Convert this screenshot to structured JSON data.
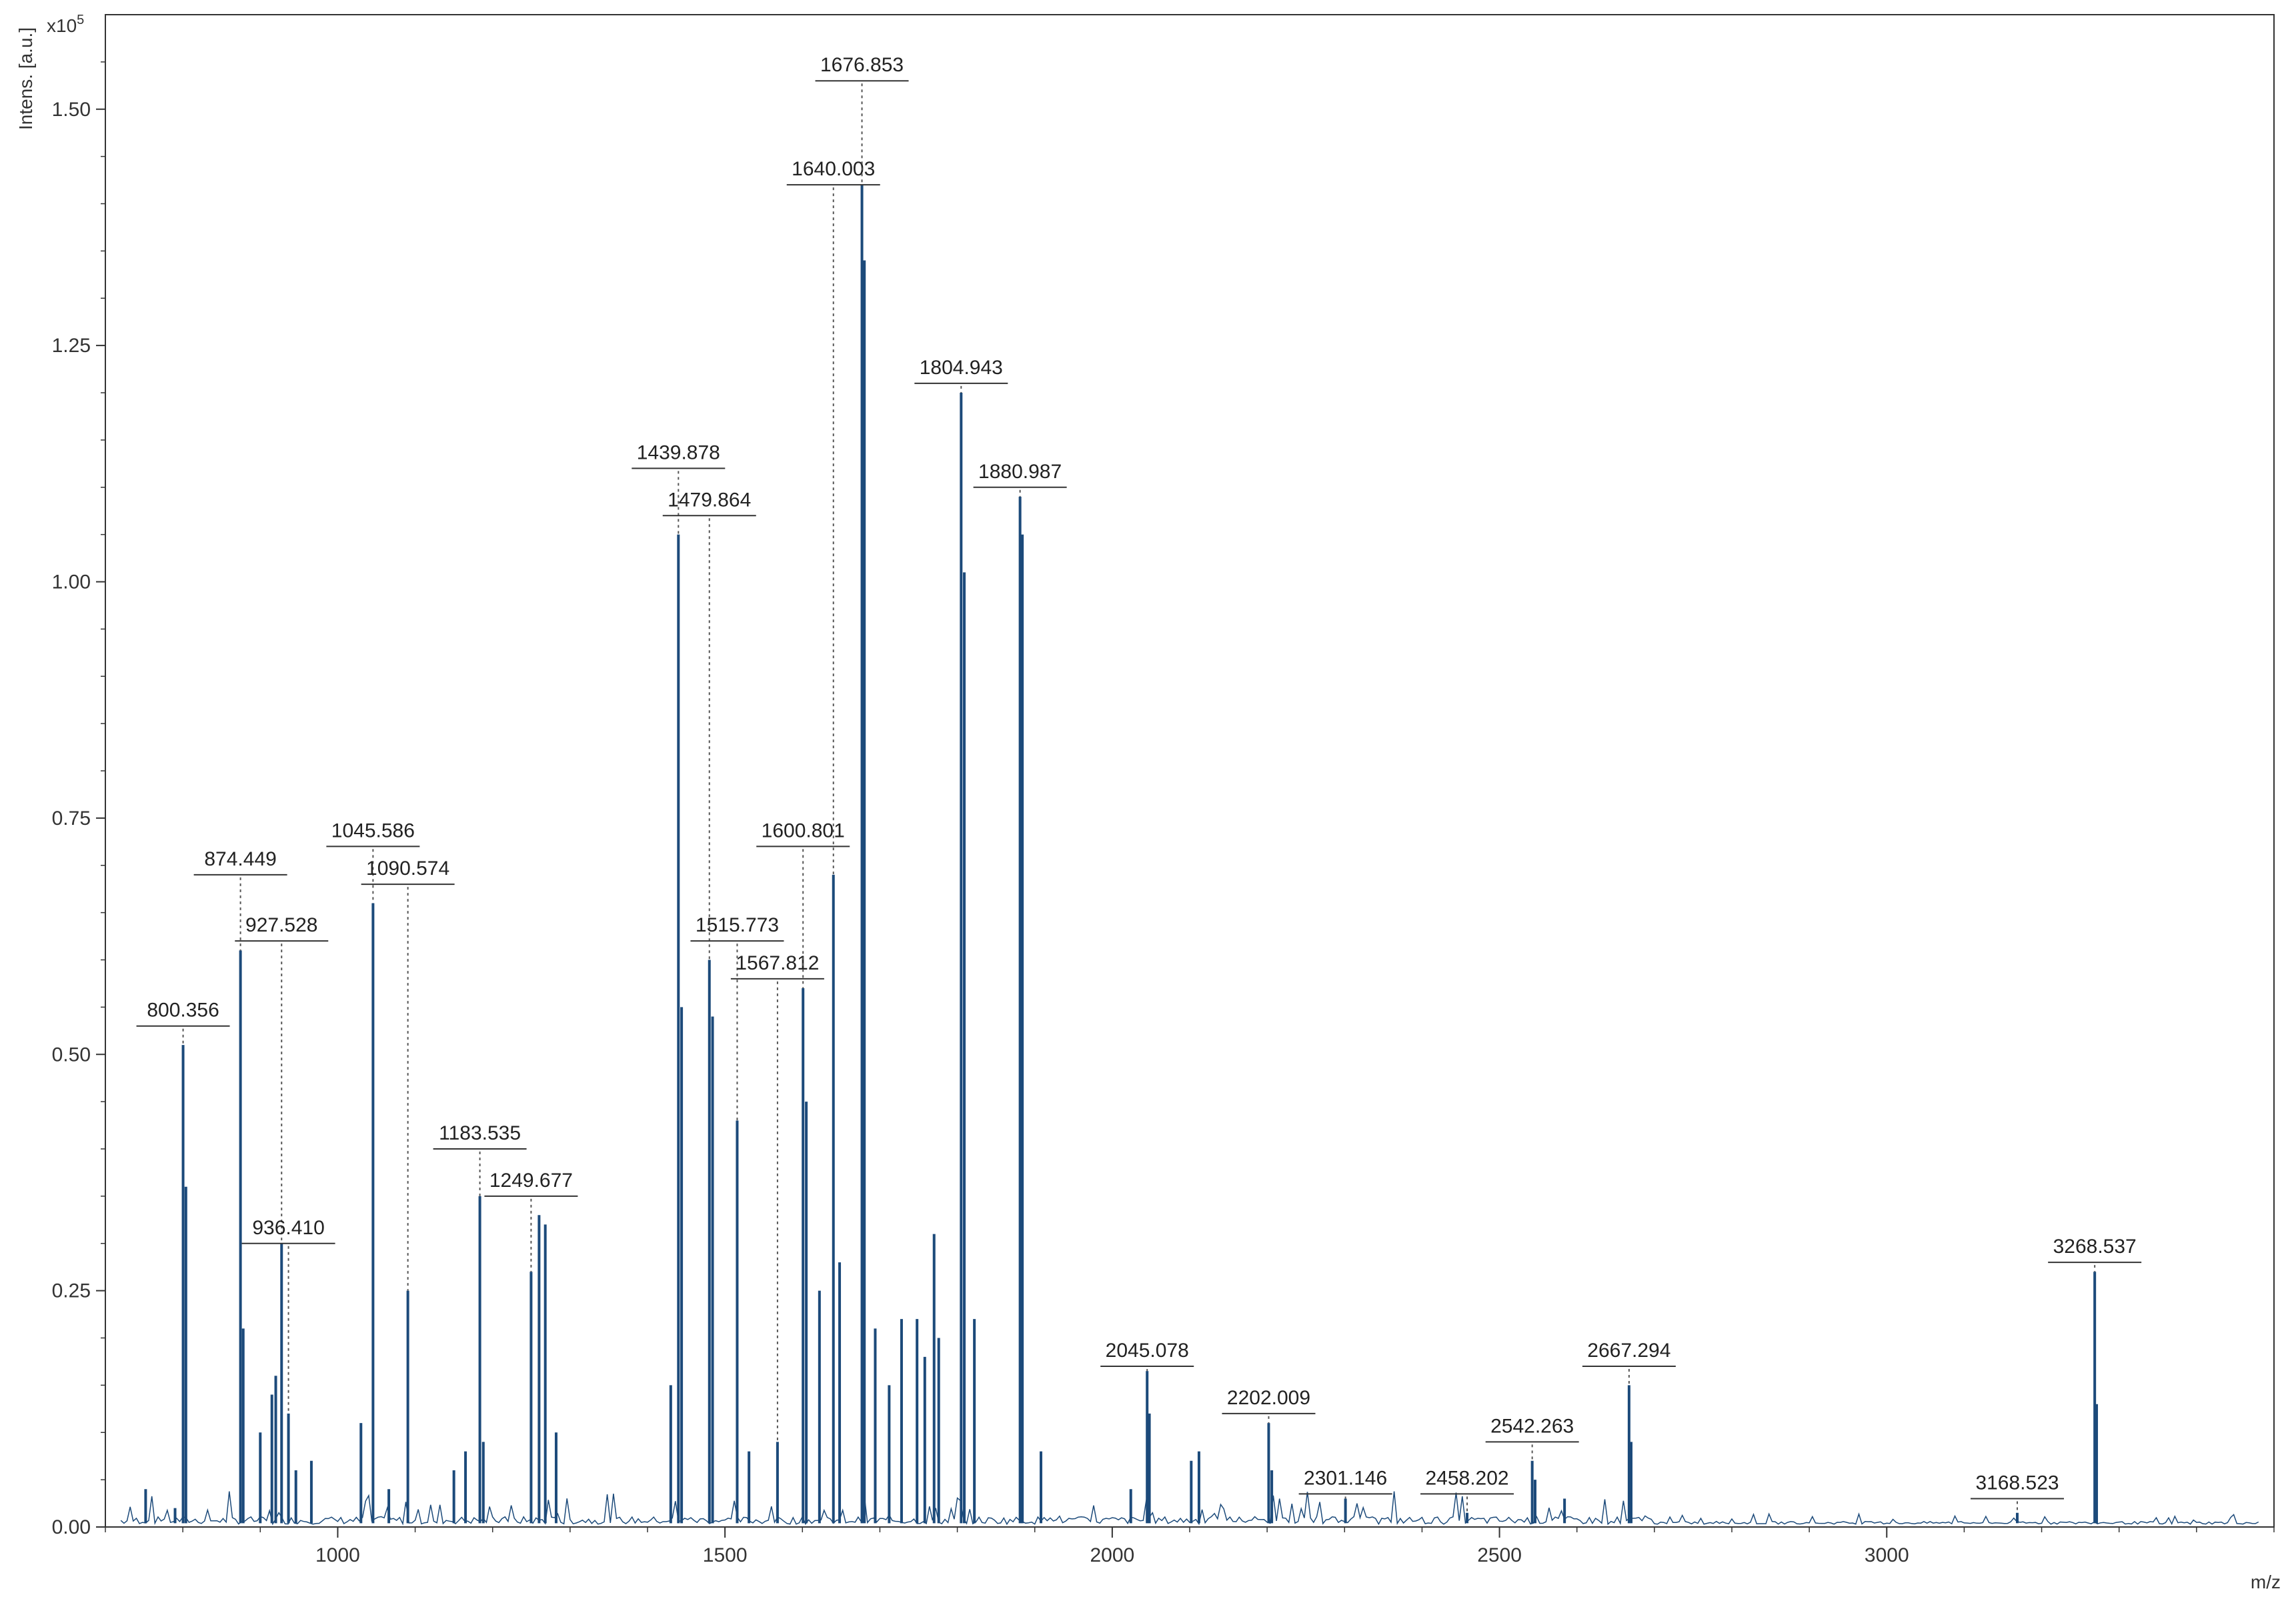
{
  "chart_data": {
    "type": "line",
    "title": "",
    "xlabel": "m/z",
    "ylabel": "Intens. [a.u.]",
    "y_multiplier": "x10",
    "y_multiplier_exp": "5",
    "xlim": [
      700,
      3500
    ],
    "ylim": [
      0,
      1.6
    ],
    "x_ticks": [
      {
        "value": 1000,
        "label": "1000"
      },
      {
        "value": 1500,
        "label": "1500"
      },
      {
        "value": 2000,
        "label": "2000"
      },
      {
        "value": 2500,
        "label": "2500"
      },
      {
        "value": 3000,
        "label": "3000"
      }
    ],
    "y_ticks": [
      {
        "value": 0.0,
        "label": "0.00"
      },
      {
        "value": 0.25,
        "label": "0.25"
      },
      {
        "value": 0.5,
        "label": "0.50"
      },
      {
        "value": 0.75,
        "label": "0.75"
      },
      {
        "value": 1.0,
        "label": "1.00"
      },
      {
        "value": 1.25,
        "label": "1.25"
      },
      {
        "value": 1.5,
        "label": "1.50"
      }
    ],
    "grid": false,
    "line_color": "#1c4a7a",
    "labeled_peaks": [
      {
        "mz": 800.356,
        "label": "800.356",
        "y": 0.51,
        "label_y": 0.53
      },
      {
        "mz": 874.449,
        "label": "874.449",
        "y": 0.61,
        "label_y": 0.69
      },
      {
        "mz": 927.528,
        "label": "927.528",
        "y": 0.3,
        "label_y": 0.62
      },
      {
        "mz": 936.41,
        "label": "936.410",
        "y": 0.12,
        "label_y": 0.3
      },
      {
        "mz": 1045.586,
        "label": "1045.586",
        "y": 0.66,
        "label_y": 0.72
      },
      {
        "mz": 1090.574,
        "label": "1090.574",
        "y": 0.25,
        "label_y": 0.68
      },
      {
        "mz": 1183.535,
        "label": "1183.535",
        "y": 0.35,
        "label_y": 0.4
      },
      {
        "mz": 1249.677,
        "label": "1249.677",
        "y": 0.27,
        "label_y": 0.35
      },
      {
        "mz": 1439.878,
        "label": "1439.878",
        "y": 1.05,
        "label_y": 1.12
      },
      {
        "mz": 1479.864,
        "label": "1479.864",
        "y": 0.6,
        "label_y": 1.07
      },
      {
        "mz": 1515.773,
        "label": "1515.773",
        "y": 0.43,
        "label_y": 0.62
      },
      {
        "mz": 1567.812,
        "label": "1567.812",
        "y": 0.09,
        "label_y": 0.58
      },
      {
        "mz": 1600.801,
        "label": "1600.801",
        "y": 0.57,
        "label_y": 0.72
      },
      {
        "mz": 1640.003,
        "label": "1640.003",
        "y": 0.69,
        "label_y": 1.42
      },
      {
        "mz": 1676.853,
        "label": "1676.853",
        "y": 1.42,
        "label_y": 1.53
      },
      {
        "mz": 1804.943,
        "label": "1804.943",
        "y": 1.2,
        "label_y": 1.21
      },
      {
        "mz": 1880.987,
        "label": "1880.987",
        "y": 1.09,
        "label_y": 1.1
      },
      {
        "mz": 2045.078,
        "label": "2045.078",
        "y": 0.165,
        "label_y": 0.17
      },
      {
        "mz": 2202.009,
        "label": "2202.009",
        "y": 0.11,
        "label_y": 0.12
      },
      {
        "mz": 2301.146,
        "label": "2301.146",
        "y": 0.03,
        "label_y": 0.035
      },
      {
        "mz": 2458.202,
        "label": "2458.202",
        "y": 0.015,
        "label_y": 0.035
      },
      {
        "mz": 2542.263,
        "label": "2542.263",
        "y": 0.07,
        "label_y": 0.09
      },
      {
        "mz": 2667.294,
        "label": "2667.294",
        "y": 0.15,
        "label_y": 0.17
      },
      {
        "mz": 3168.523,
        "label": "3168.523",
        "y": 0.015,
        "label_y": 0.03
      },
      {
        "mz": 3268.537,
        "label": "3268.537",
        "y": 0.27,
        "label_y": 0.28
      }
    ],
    "minor_peaks": [
      {
        "mz": 752,
        "y": 0.04
      },
      {
        "mz": 790,
        "y": 0.02
      },
      {
        "mz": 804,
        "y": 0.36
      },
      {
        "mz": 878,
        "y": 0.21
      },
      {
        "mz": 900,
        "y": 0.1
      },
      {
        "mz": 915,
        "y": 0.14
      },
      {
        "mz": 920,
        "y": 0.16
      },
      {
        "mz": 946,
        "y": 0.06
      },
      {
        "mz": 966,
        "y": 0.07
      },
      {
        "mz": 1030,
        "y": 0.11
      },
      {
        "mz": 1066,
        "y": 0.04
      },
      {
        "mz": 1150,
        "y": 0.06
      },
      {
        "mz": 1165,
        "y": 0.08
      },
      {
        "mz": 1188,
        "y": 0.09
      },
      {
        "mz": 1260,
        "y": 0.33
      },
      {
        "mz": 1268,
        "y": 0.32
      },
      {
        "mz": 1282,
        "y": 0.1
      },
      {
        "mz": 1430,
        "y": 0.15
      },
      {
        "mz": 1444,
        "y": 0.55
      },
      {
        "mz": 1484,
        "y": 0.54
      },
      {
        "mz": 1531,
        "y": 0.08
      },
      {
        "mz": 1605,
        "y": 0.45
      },
      {
        "mz": 1622,
        "y": 0.25
      },
      {
        "mz": 1648,
        "y": 0.28
      },
      {
        "mz": 1680,
        "y": 1.34
      },
      {
        "mz": 1694,
        "y": 0.21
      },
      {
        "mz": 1712,
        "y": 0.15
      },
      {
        "mz": 1728,
        "y": 0.22
      },
      {
        "mz": 1748,
        "y": 0.22
      },
      {
        "mz": 1758,
        "y": 0.18
      },
      {
        "mz": 1770,
        "y": 0.31
      },
      {
        "mz": 1776,
        "y": 0.2
      },
      {
        "mz": 1809,
        "y": 1.01
      },
      {
        "mz": 1822,
        "y": 0.22
      },
      {
        "mz": 1884,
        "y": 1.05
      },
      {
        "mz": 1908,
        "y": 0.08
      },
      {
        "mz": 2024,
        "y": 0.04
      },
      {
        "mz": 2048,
        "y": 0.12
      },
      {
        "mz": 2102,
        "y": 0.07
      },
      {
        "mz": 2112,
        "y": 0.08
      },
      {
        "mz": 2206,
        "y": 0.06
      },
      {
        "mz": 2546,
        "y": 0.05
      },
      {
        "mz": 2584,
        "y": 0.03
      },
      {
        "mz": 2670,
        "y": 0.09
      },
      {
        "mz": 3271,
        "y": 0.13
      }
    ]
  }
}
